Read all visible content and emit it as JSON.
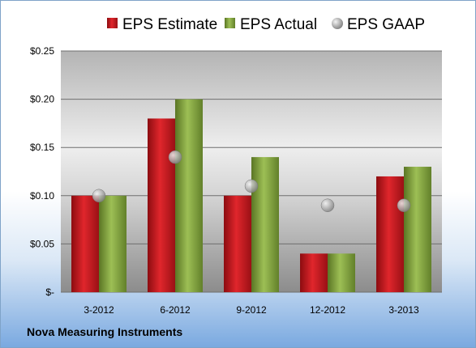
{
  "chart_data": {
    "type": "bar",
    "categories": [
      "3-2012",
      "6-2012",
      "9-2012",
      "12-2012",
      "3-2013"
    ],
    "series": [
      {
        "name": "EPS Estimate",
        "kind": "bar",
        "color": "#c0141b",
        "values": [
          0.1,
          0.18,
          0.1,
          0.04,
          0.12
        ]
      },
      {
        "name": "EPS Actual",
        "kind": "bar",
        "color": "#7a9a35",
        "values": [
          0.1,
          0.2,
          0.14,
          0.04,
          0.13
        ]
      },
      {
        "name": "EPS GAAP",
        "kind": "marker",
        "color": "#9a9a9a",
        "values": [
          0.1,
          0.14,
          0.11,
          0.09,
          0.09
        ]
      }
    ],
    "ylim": [
      0,
      0.25
    ],
    "yticks": [
      0,
      0.05,
      0.1,
      0.15,
      0.2,
      0.25
    ],
    "ytick_labels": [
      "$-",
      "$0.05",
      "$0.10",
      "$0.15",
      "$0.20",
      "$0.25"
    ],
    "grid": true,
    "legend_position": "top"
  },
  "footer": {
    "company": "Nova Measuring Instruments"
  }
}
